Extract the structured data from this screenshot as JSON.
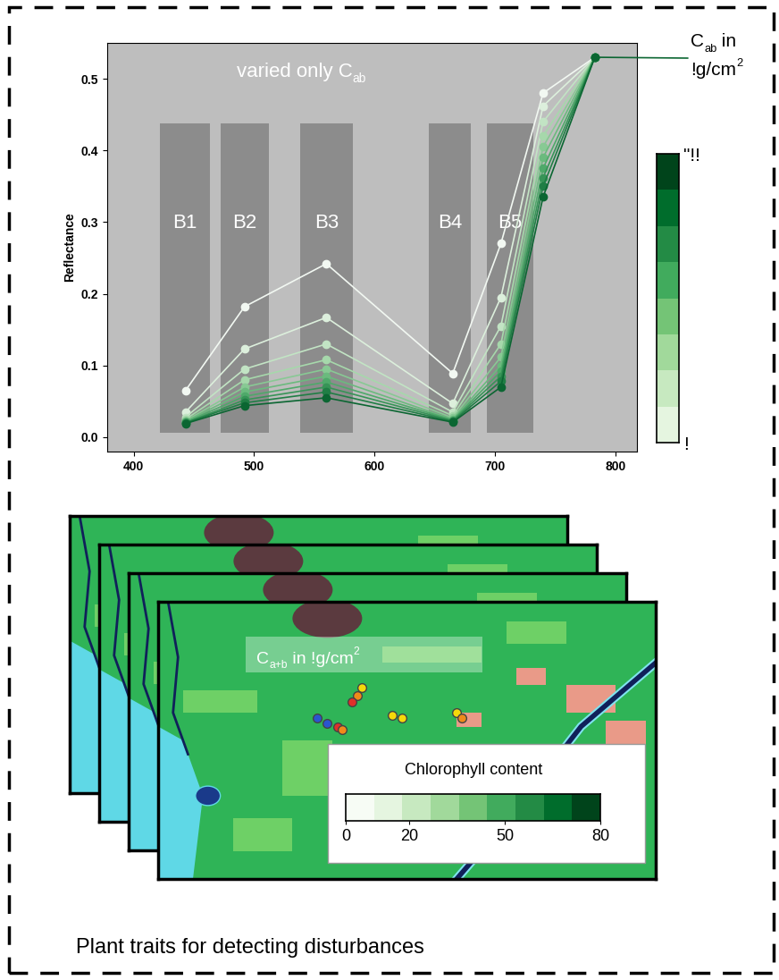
{
  "chart_data": {
    "type": "line",
    "title": [
      {
        "text": "varied only C"
      },
      {
        "sub": "ab"
      }
    ],
    "y_label": "Reflectance",
    "x": [
      443,
      492,
      560,
      665,
      705,
      740,
      783
    ],
    "xlim": [
      378,
      818
    ],
    "xticks": [
      400,
      500,
      600,
      700,
      800
    ],
    "ylim": [
      -0.02,
      0.55
    ],
    "yticks": [
      0.0,
      0.1,
      0.2,
      0.3,
      0.4,
      0.5
    ],
    "marker": "o",
    "line_style": "solid",
    "series": [
      {
        "color": "#f2f8f2",
        "values": [
          0.065,
          0.182,
          0.242,
          0.089,
          0.27,
          0.48,
          0.53
        ]
      },
      {
        "color": "#dcefdc",
        "values": [
          0.035,
          0.123,
          0.167,
          0.047,
          0.195,
          0.462,
          0.53
        ]
      },
      {
        "color": "#c2e4c4",
        "values": [
          0.028,
          0.095,
          0.13,
          0.035,
          0.155,
          0.44,
          0.53
        ]
      },
      {
        "color": "#a6d8ab",
        "values": [
          0.025,
          0.08,
          0.108,
          0.03,
          0.13,
          0.42,
          0.53
        ]
      },
      {
        "color": "#88c994",
        "values": [
          0.023,
          0.07,
          0.095,
          0.027,
          0.112,
          0.405,
          0.53
        ]
      },
      {
        "color": "#6bba7e",
        "values": [
          0.022,
          0.063,
          0.085,
          0.025,
          0.1,
          0.39,
          0.53
        ]
      },
      {
        "color": "#4fa96a",
        "values": [
          0.021,
          0.057,
          0.077,
          0.024,
          0.092,
          0.375,
          0.53
        ]
      },
      {
        "color": "#379457",
        "values": [
          0.02,
          0.052,
          0.07,
          0.023,
          0.085,
          0.362,
          0.53
        ]
      },
      {
        "color": "#207e45",
        "values": [
          0.02,
          0.048,
          0.063,
          0.022,
          0.078,
          0.35,
          0.53
        ]
      },
      {
        "color": "#0b6632",
        "values": [
          0.019,
          0.044,
          0.055,
          0.021,
          0.07,
          0.335,
          0.53
        ]
      }
    ],
    "bands": [
      {
        "label": "B1",
        "x": [
          422,
          463
        ]
      },
      {
        "label": "B2",
        "x": [
          472,
          512
        ]
      },
      {
        "label": "B3",
        "x": [
          538,
          582
        ]
      },
      {
        "label": "B4",
        "x": [
          645,
          680
        ]
      },
      {
        "label": "B5",
        "x": [
          693,
          732
        ]
      }
    ],
    "band_y": [
      0.006,
      0.438
    ],
    "colorbar": {
      "title": [
        [
          {
            "text": "C"
          },
          {
            "sub": "ab"
          },
          {
            "text": " in"
          }
        ],
        [
          {
            "text": "!g/cm"
          },
          {
            "sup": "2"
          }
        ]
      ],
      "range": [
        0,
        100
      ],
      "colors": [
        "#e5f5e0",
        "#c7e9c0",
        "#a1d99b",
        "#74c476",
        "#41ab5d",
        "#238b45",
        "#006d2c",
        "#00441b"
      ],
      "ticks": [
        {
          "value": 100,
          "label": "\"!!"
        },
        {
          "value": 0,
          "label": "!"
        }
      ]
    }
  },
  "map_panel": {
    "label": [
      {
        "text": "C"
      },
      {
        "sub": "a+b"
      },
      {
        "text": " in !g/cm"
      },
      {
        "sup": "2"
      }
    ],
    "legend": {
      "title": "Chlorophyll content",
      "range": [
        0,
        80
      ],
      "ticks": [
        0,
        20,
        50,
        80
      ],
      "colors": [
        "#f7fcf5",
        "#e5f5e0",
        "#c7e9c0",
        "#a1d99b",
        "#74c476",
        "#41ab5d",
        "#238b45",
        "#006d2c",
        "#00441b"
      ]
    }
  },
  "caption": "Plant traits for detecting disturbances"
}
